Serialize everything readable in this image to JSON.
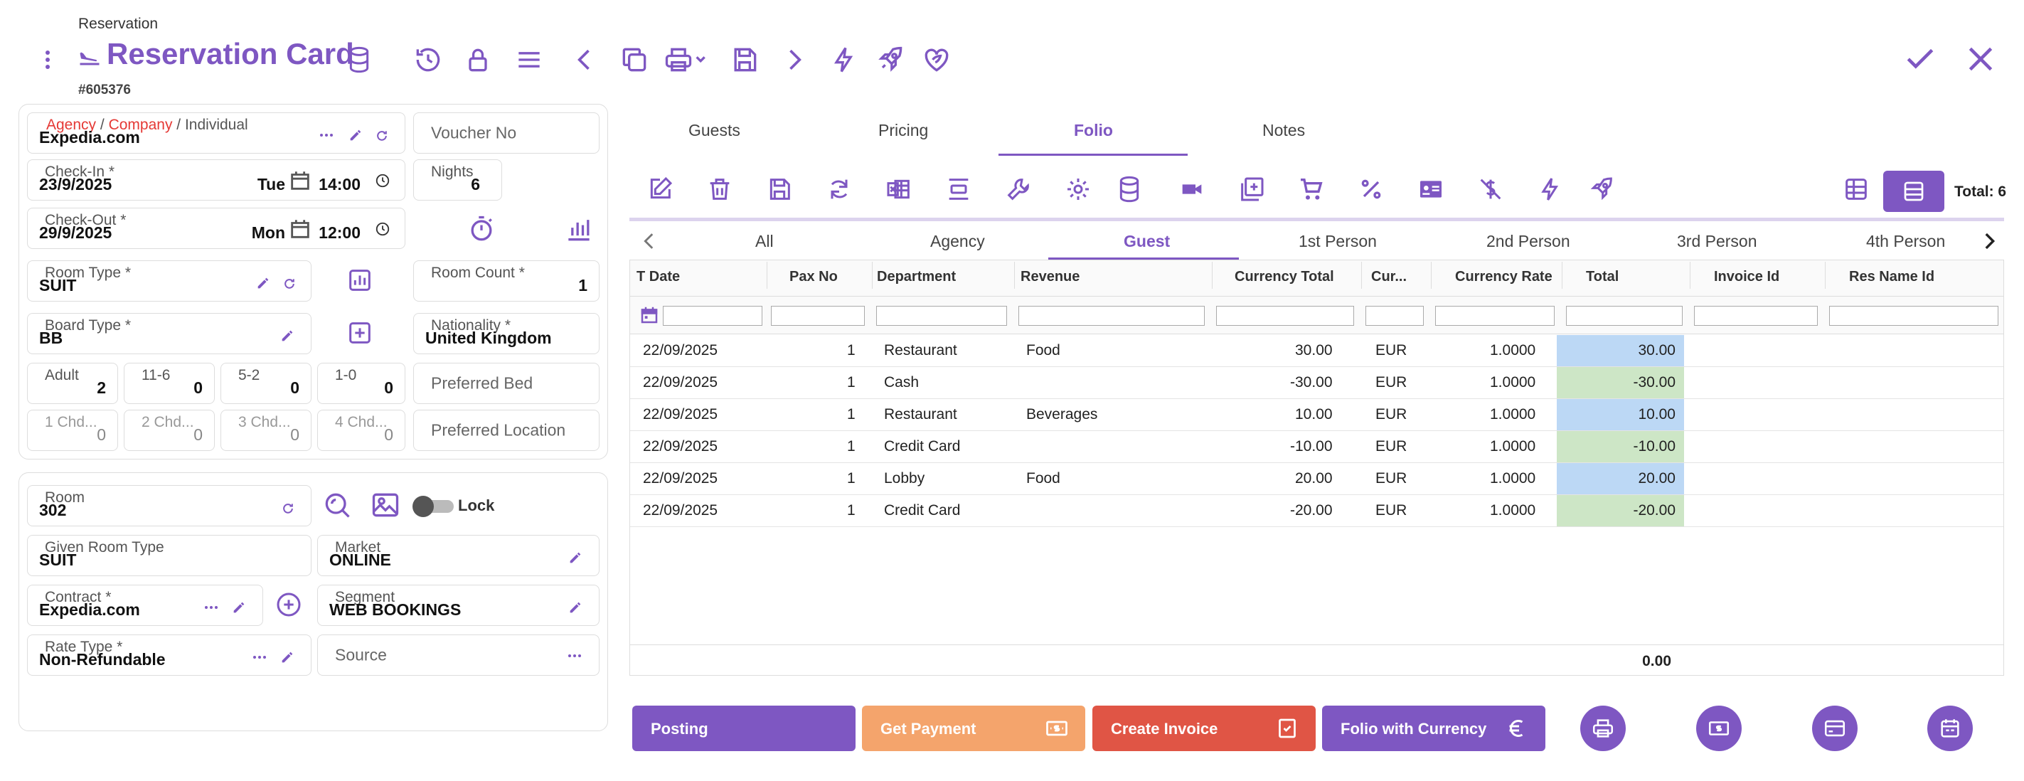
{
  "header": {
    "breadcrumb": "Reservation",
    "title": "Reservation Card",
    "reservation_no": "#605376"
  },
  "guest_form": {
    "source_labels": [
      "Agency",
      " / ",
      "Company",
      " / ",
      "Individual"
    ],
    "source_value": "Expedia.com",
    "voucher_placeholder": "Voucher No",
    "checkin": {
      "label": "Check-In *",
      "date": "23/9/2025",
      "day": "Tue",
      "time": "14:00"
    },
    "checkout": {
      "label": "Check-Out *",
      "date": "29/9/2025",
      "day": "Mon",
      "time": "12:00"
    },
    "nights": {
      "label": "Nights",
      "value": "6"
    },
    "room_type": {
      "label": "Room Type *",
      "value": "SUIT"
    },
    "room_count": {
      "label": "Room Count *",
      "value": "1"
    },
    "board_type": {
      "label": "Board Type *",
      "value": "BB"
    },
    "nationality": {
      "label": "Nationality *",
      "value": "United Kingdom"
    },
    "pax": [
      {
        "label": "Adult",
        "value": "2"
      },
      {
        "label": "11-6",
        "value": "0"
      },
      {
        "label": "5-2",
        "value": "0"
      },
      {
        "label": "1-0",
        "value": "0"
      }
    ],
    "chd": [
      {
        "label": "1 Chd...",
        "value": "0"
      },
      {
        "label": "2 Chd...",
        "value": "0"
      },
      {
        "label": "3 Chd...",
        "value": "0"
      },
      {
        "label": "4 Chd...",
        "value": "0"
      }
    ],
    "preferred_bed": "Preferred Bed",
    "preferred_location": "Preferred Location"
  },
  "room_form": {
    "room": {
      "label": "Room",
      "value": "302"
    },
    "lock_label": "Lock",
    "given_room_type": {
      "label": "Given Room Type",
      "value": "SUIT"
    },
    "market": {
      "label": "Market",
      "value": "ONLINE"
    },
    "contract": {
      "label": "Contract *",
      "value": "Expedia.com"
    },
    "segment": {
      "label": "Segment",
      "value": "WEB BOOKINGS"
    },
    "rate_type": {
      "label": "Rate Type *",
      "value": "Non-Refundable"
    },
    "source_placeholder": "Source"
  },
  "tabs": [
    "Guests",
    "Pricing",
    "Folio",
    "Notes"
  ],
  "active_tab": "Folio",
  "total_label": "Total: 6",
  "subtabs": [
    "All",
    "Agency",
    "Guest",
    "1st Person",
    "2nd Person",
    "3rd Person",
    "4th Person"
  ],
  "active_subtab": "Guest",
  "columns": [
    "T Date",
    "Pax No",
    "Department",
    "Revenue",
    "Currency Total",
    "Cur...",
    "Currency Rate",
    "Total",
    "Invoice Id",
    "Res Name Id"
  ],
  "rows": [
    {
      "date": "22/09/2025",
      "pax": "1",
      "dept": "Restaurant",
      "rev": "Food",
      "ctotal": "30.00",
      "cur": "EUR",
      "rate": "1.0000",
      "total": "30.00",
      "kind": "charge"
    },
    {
      "date": "22/09/2025",
      "pax": "1",
      "dept": "Cash",
      "rev": "",
      "ctotal": "-30.00",
      "cur": "EUR",
      "rate": "1.0000",
      "total": "-30.00",
      "kind": "payment"
    },
    {
      "date": "22/09/2025",
      "pax": "1",
      "dept": "Restaurant",
      "rev": "Beverages",
      "ctotal": "10.00",
      "cur": "EUR",
      "rate": "1.0000",
      "total": "10.00",
      "kind": "charge"
    },
    {
      "date": "22/09/2025",
      "pax": "1",
      "dept": "Credit Card",
      "rev": "",
      "ctotal": "-10.00",
      "cur": "EUR",
      "rate": "1.0000",
      "total": "-10.00",
      "kind": "payment"
    },
    {
      "date": "22/09/2025",
      "pax": "1",
      "dept": "Lobby",
      "rev": "Food",
      "ctotal": "20.00",
      "cur": "EUR",
      "rate": "1.0000",
      "total": "20.00",
      "kind": "charge"
    },
    {
      "date": "22/09/2025",
      "pax": "1",
      "dept": "Credit Card",
      "rev": "",
      "ctotal": "-20.00",
      "cur": "EUR",
      "rate": "1.0000",
      "total": "-20.00",
      "kind": "payment"
    }
  ],
  "grand_total": "0.00",
  "buttons": {
    "posting": "Posting",
    "get_payment": "Get Payment",
    "create_invoice": "Create Invoice",
    "folio_currency": "Folio with Currency"
  },
  "colors": {
    "primary": "#7e57c2",
    "orange": "#f4a46c",
    "red": "#e05545",
    "charge": "#bcd8f5",
    "payment": "#cde6c6",
    "required": "#e53935"
  }
}
